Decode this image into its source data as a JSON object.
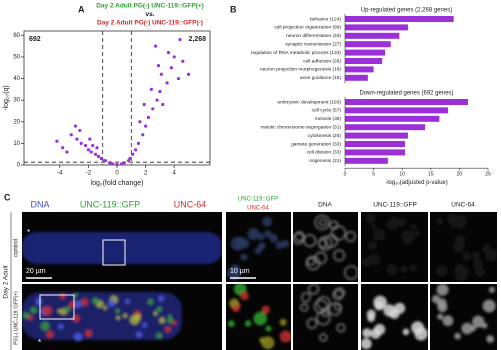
{
  "panel_labels": [
    "A",
    "B",
    "C"
  ],
  "chart_data": [
    {
      "type": "scatter",
      "title": [
        "Day 2 Adult PG(-) UNC-119::GFP(+)",
        "vs.",
        "Day 2 Adult PG(-) UNC-119::GFP(-)"
      ],
      "title_colors": [
        "#2ca02c",
        "#111111",
        "#d62728"
      ],
      "annotations": [
        "692",
        "2,268"
      ],
      "x_label": "log₂(fold change)",
      "y_label": "-log₁₀(q)",
      "xlim": [
        -6.5,
        6.5
      ],
      "ylim": [
        0,
        62
      ],
      "xticks": [
        -4,
        -2,
        0,
        2,
        4
      ],
      "yticks": [
        0,
        10,
        20,
        30,
        40,
        50,
        60
      ],
      "thresholds_x": [
        -1,
        1
      ],
      "threshold_y": 1.3,
      "series": [
        {
          "color": "#9b30d9",
          "x": [
            -3.2,
            -2.8,
            -2.5,
            -2.2,
            -2,
            -1.8,
            -1.5,
            -1.3,
            -1.1,
            -3.8,
            -4.2,
            -2.6,
            -1.9,
            -1.4,
            -0.8,
            -0.5,
            -0.3,
            0,
            0.3,
            0.5,
            0.8,
            1.1,
            1.3,
            1.5,
            1.8,
            2,
            2.2,
            2.5,
            2.8,
            3,
            3.2,
            3.5,
            3.8,
            4,
            4.3,
            4.6,
            5,
            1.6,
            2.4,
            3.1,
            2.7,
            3.6,
            4.4,
            1.9,
            2.9,
            0.9,
            -0.9,
            -1.7,
            -2.9,
            -3.5
          ],
          "y": [
            14,
            12,
            10,
            9,
            7,
            6,
            5,
            4,
            3,
            8,
            11,
            16,
            12,
            8,
            2,
            1,
            0.5,
            0.2,
            0.5,
            1,
            2,
            5,
            7,
            10,
            14,
            18,
            22,
            26,
            30,
            34,
            28,
            38,
            45,
            50,
            40,
            48,
            42,
            20,
            35,
            42,
            55,
            52,
            58,
            28,
            46,
            3,
            2,
            9,
            18,
            6
          ]
        }
      ]
    },
    {
      "type": "bar",
      "orientation": "horizontal",
      "title": "Up-regulated genes (2,268 genes)",
      "color": "#9b30d9",
      "xlim": [
        0,
        25
      ],
      "categories": [
        "behavior (124)",
        "cell projection organization (96)",
        "neuron differentiation (33)",
        "synaptic transmission (27)",
        "regulation of RNA metabolic process (134)",
        "cell adhesion (26)",
        "neuron projection morphogenesis (18)",
        "axon guidance (15)"
      ],
      "values": [
        19,
        11,
        9.5,
        8,
        7,
        6.5,
        5,
        4
      ]
    },
    {
      "type": "bar",
      "orientation": "horizontal",
      "title": "Down-regulated genes (692 genes)",
      "color": "#9b30d9",
      "xlim": [
        0,
        25
      ],
      "xticks": [
        0,
        5,
        10,
        15,
        20,
        25
      ],
      "x_label": "-log₁₀(adjusted p-value)",
      "categories": [
        "embryonic development (193)",
        "cell cycle (57)",
        "meiosis (38)",
        "meiotic chromosome segregation (31)",
        "cytokinesis (25)",
        "gamete generation (33)",
        "cell division (33)",
        "oogenesis (21)"
      ],
      "values": [
        21.5,
        18,
        16.5,
        14,
        11,
        10.5,
        10.5,
        7.5
      ]
    }
  ],
  "microscopy": {
    "stage": "Day 2 Adult",
    "rows": [
      "control",
      "PG(-) UNC-119::GFP(+)"
    ],
    "large_headers": [
      {
        "text": "DNA",
        "color": "#3a4fd6"
      },
      {
        "text": "UNC-119::GFP",
        "color": "#2ca02c"
      },
      {
        "text": "UNC-64",
        "color": "#d62728"
      }
    ],
    "merge_header": [
      {
        "text": "UNC-119::GFP",
        "color": "#2ca02c"
      },
      {
        "text": "UNC-64",
        "color": "#d62728"
      }
    ],
    "small_headers": [
      "DNA",
      "UNC-119::GFP",
      "UNC-64"
    ],
    "scale_bars": [
      "20 µm",
      "10 µm"
    ],
    "asterisks": [
      "*",
      "*"
    ]
  }
}
